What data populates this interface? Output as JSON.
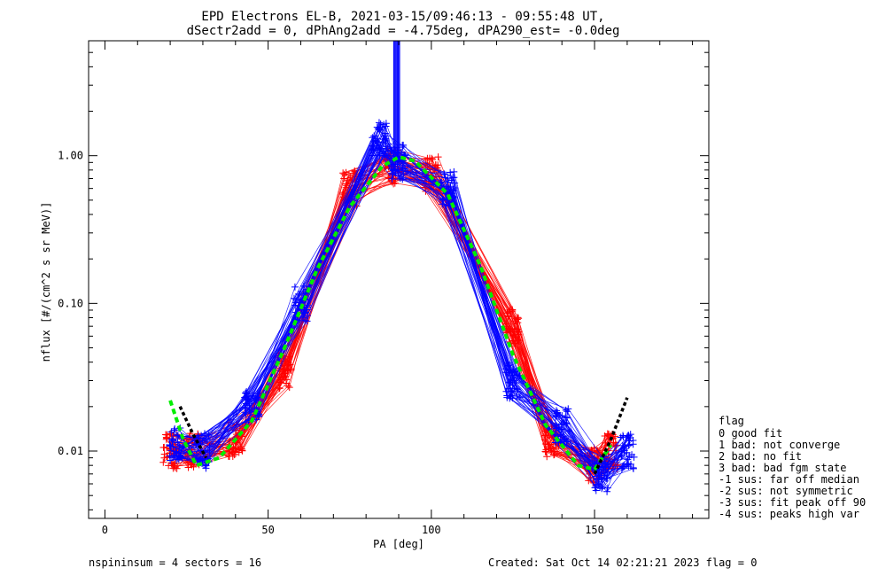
{
  "chart_data": {
    "type": "line",
    "title_line1": "EPD Electrons EL-B, 2021-03-15/09:46:13 - 09:55:48 UT,",
    "title_line2": "dSectr2add = 0, dPhAng2add = -4.75deg, dPA290_est=  -0.0deg",
    "xlabel": "PA [deg]",
    "ylabel": "nflux [#/(cm^2 s sr MeV)]",
    "xlim": [
      -5,
      185
    ],
    "ylim": [
      0.0035,
      6.0
    ],
    "yscale": "log",
    "xticks": [
      0,
      50,
      100,
      150
    ],
    "xtick_labels": [
      "0",
      "50",
      "100",
      "150"
    ],
    "yticks": [
      0.01,
      0.1,
      1.0
    ],
    "ytick_labels": [
      "0.01",
      "0.10",
      "1.00"
    ],
    "colors": {
      "red": "#ff0000",
      "blue": "#0000ff",
      "green": "#00ee00",
      "black": "#000000"
    },
    "series": [
      {
        "name": "red",
        "x": [
          20,
          27,
          40,
          55,
          75,
          88,
          100,
          125,
          137,
          150,
          155
        ],
        "y": [
          0.01,
          0.01,
          0.012,
          0.035,
          0.6,
          0.85,
          0.75,
          0.07,
          0.012,
          0.008,
          0.01
        ]
      },
      {
        "name": "blue",
        "x": [
          22,
          30,
          45,
          60,
          84,
          90,
          105,
          125,
          140,
          152,
          160
        ],
        "y": [
          0.011,
          0.01,
          0.02,
          0.1,
          1.3,
          0.9,
          0.6,
          0.03,
          0.015,
          0.007,
          0.01
        ]
      },
      {
        "name": "green fit",
        "x": [
          20,
          24,
          28,
          35,
          45,
          55,
          65,
          75,
          85,
          90,
          95,
          105,
          115,
          125,
          135,
          145,
          150,
          155
        ],
        "y": [
          0.022,
          0.012,
          0.008,
          0.009,
          0.016,
          0.05,
          0.17,
          0.45,
          0.85,
          0.98,
          0.92,
          0.55,
          0.18,
          0.045,
          0.015,
          0.008,
          0.0075,
          0.011
        ]
      },
      {
        "name": "black fit",
        "x": [
          23,
          27,
          31,
          150,
          155,
          160
        ],
        "y": [
          0.02,
          0.013,
          0.009,
          0.007,
          0.012,
          0.023
        ]
      }
    ],
    "legend": {
      "title": "flag",
      "entries": [
        " 0 good fit",
        " 1 bad: not converge",
        " 2 bad: no fit",
        " 3 bad: bad fgm state",
        "-1 sus: far off median",
        "-2 sus: not symmetric",
        "-3 sus: fit peak off 90",
        "-4 sus: peaks high var"
      ],
      "placement": "right-bottom"
    },
    "footer_left": "nspininsum =  4  sectors = 16",
    "footer_right": "Created: Sat Oct 14 02:21:21 2023   flag = 0"
  }
}
